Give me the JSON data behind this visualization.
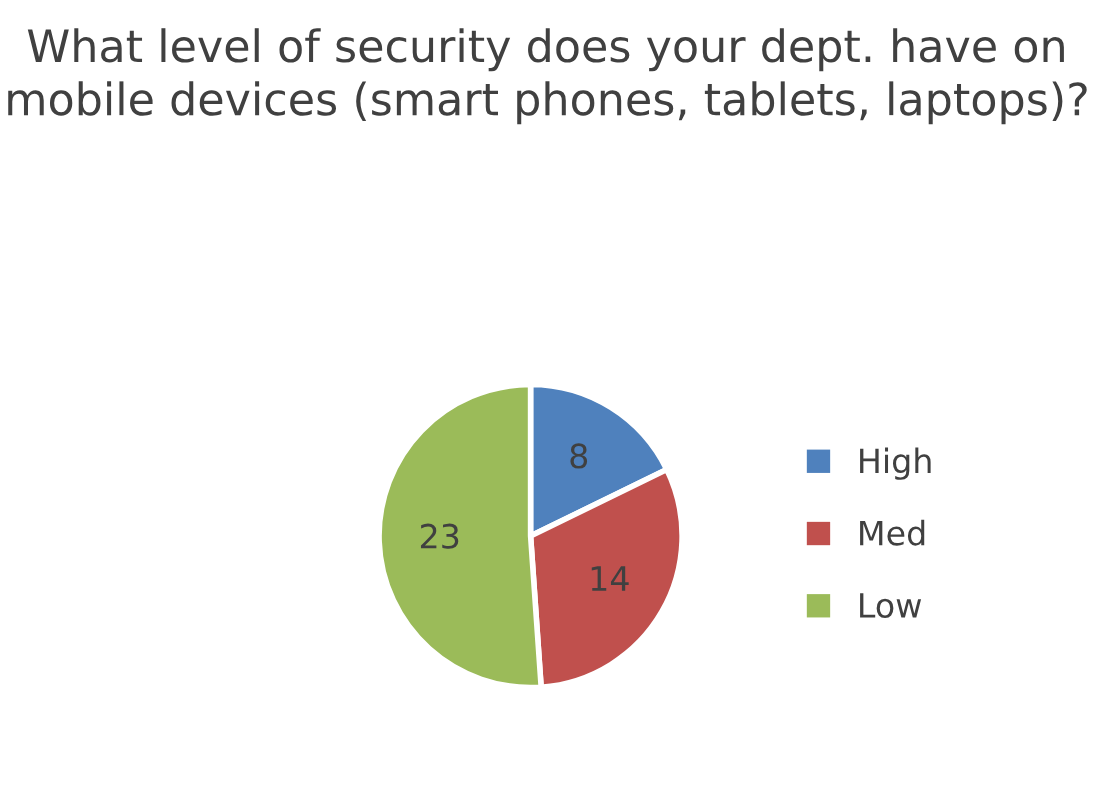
{
  "chart_data": {
    "type": "pie",
    "title": "What level of security does your dept. have on mobile devices (smart phones, tablets, laptops)?",
    "categories": [
      "High",
      "Med",
      "Low"
    ],
    "values": [
      8,
      14,
      23
    ],
    "colors": [
      "#4f81bd",
      "#c0504d",
      "#9bbb59"
    ],
    "data_labels": true,
    "legend": "right"
  }
}
